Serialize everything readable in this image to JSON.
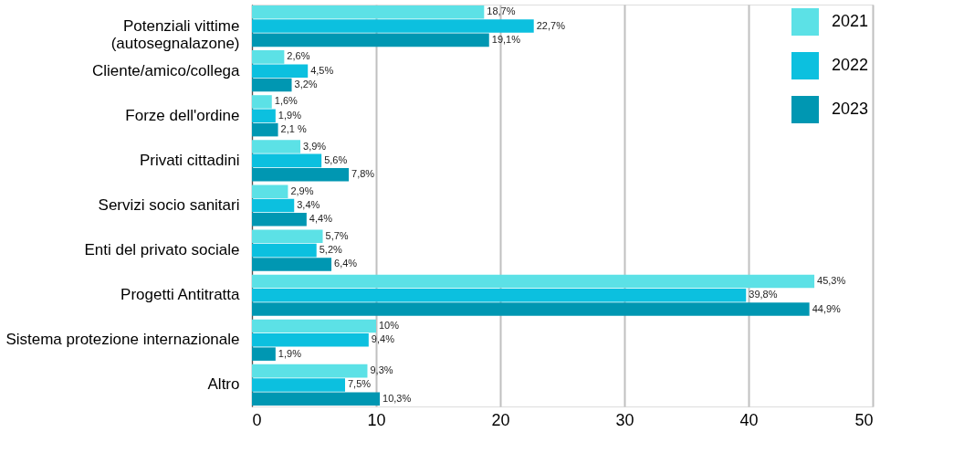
{
  "chart_data": {
    "type": "bar",
    "orientation": "horizontal",
    "categories": [
      "Potenziali vittime\n(autosegnalazone)",
      "Cliente/amico/collega",
      "Forze dell'ordine",
      "Privati cittadini",
      "Servizi socio sanitari",
      "Enti del privato sociale",
      "Progetti Antitratta",
      "Sistema protezione internazionale",
      "Altro"
    ],
    "series": [
      {
        "name": "2021",
        "color": "#5ce1e6",
        "values": [
          18.7,
          2.6,
          1.6,
          3.9,
          2.9,
          5.7,
          45.3,
          10,
          9.3
        ],
        "value_labels": [
          "18,7%",
          "2,6%",
          "1,6%",
          "3,9%",
          "2,9%",
          "5,7%",
          "45,3%",
          "10%",
          "9,3%"
        ]
      },
      {
        "name": "2022",
        "color": "#0cc0df",
        "values": [
          22.7,
          4.5,
          1.9,
          5.6,
          3.4,
          5.2,
          39.8,
          9.4,
          7.5
        ],
        "value_labels": [
          "22,7%",
          "4,5%",
          "1,9%",
          "5,6%",
          "3,4%",
          "5,2%",
          "39,8%",
          "9,4%",
          "7,5%"
        ]
      },
      {
        "name": "2023",
        "color": "#0097b2",
        "values": [
          19.1,
          3.2,
          2.1,
          7.8,
          4.4,
          6.4,
          44.9,
          1.9,
          10.3
        ],
        "value_labels": [
          "19,1%",
          "3,2%",
          "2,1 %",
          "7,8%",
          "4,4%",
          "6,4%",
          "44,9%",
          "1,9%",
          "10,3%"
        ]
      }
    ],
    "xlim": [
      0,
      50
    ],
    "xticks": [
      0,
      10,
      20,
      30,
      40,
      50
    ],
    "grid": "x",
    "legend": "top right"
  }
}
